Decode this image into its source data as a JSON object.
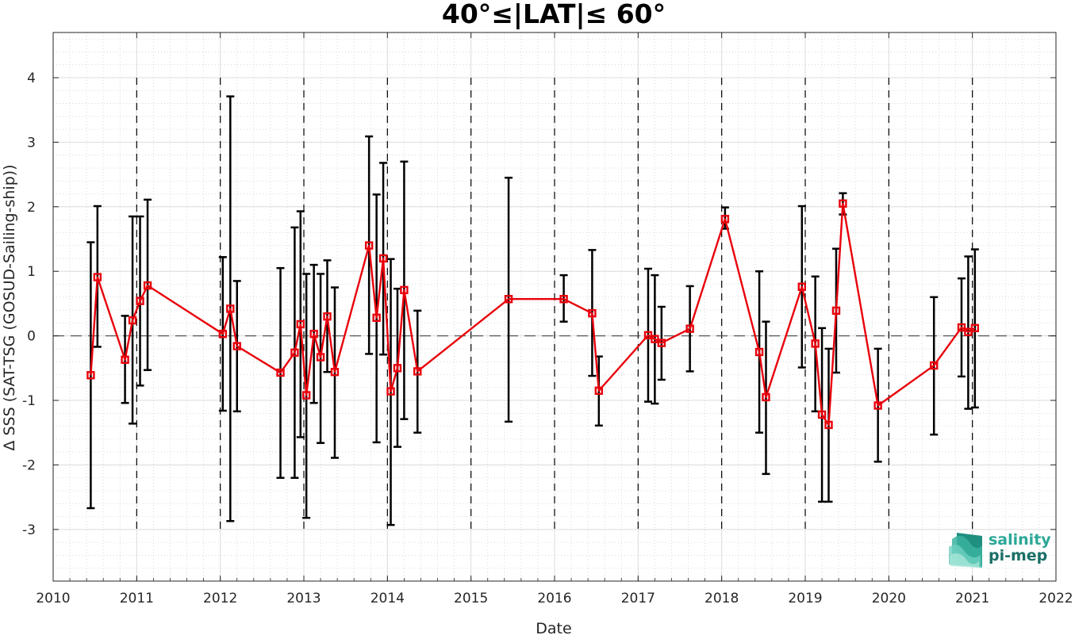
{
  "chart_data": {
    "type": "line",
    "title": "40°≤|LAT|≤ 60°",
    "xlabel": "Date",
    "ylabel": "Δ SSS (SAT-TSG (GOSUD-Sailing-ship))",
    "xlim": [
      2010,
      2022
    ],
    "ylim": [
      -3.8,
      4.7
    ],
    "x_ticks": [
      2010,
      2011,
      2012,
      2013,
      2014,
      2015,
      2016,
      2017,
      2018,
      2019,
      2020,
      2021,
      2022
    ],
    "y_ticks": [
      -3,
      -2,
      -1,
      0,
      1,
      2,
      3,
      4
    ],
    "y_tick_labels": [
      "-3",
      "-2",
      "-1",
      "0",
      "1",
      "2",
      "3",
      "4"
    ],
    "grid": true,
    "minor_grid": true,
    "zero_line": true,
    "year_boundary_lines": true,
    "colors": {
      "series": "#e8000b",
      "errorbar": "#000000"
    },
    "series": [
      {
        "marker": "square",
        "x": [
          2010.45,
          2010.53,
          2010.86,
          2010.95,
          2011.04,
          2011.13,
          2012.03,
          2012.12,
          2012.2,
          2012.72,
          2012.89,
          2012.96,
          2013.03,
          2013.12,
          2013.2,
          2013.28,
          2013.37,
          2013.78,
          2013.87,
          2013.95,
          2014.04,
          2014.12,
          2014.2,
          2014.36,
          2015.45,
          2016.11,
          2016.45,
          2016.53,
          2017.12,
          2017.2,
          2017.28,
          2017.62,
          2018.04,
          2018.45,
          2018.53,
          2018.96,
          2019.12,
          2019.2,
          2019.28,
          2019.37,
          2019.45,
          2019.87,
          2020.54,
          2020.87,
          2020.95,
          2021.03
        ],
        "y": [
          -0.61,
          0.91,
          -0.37,
          0.24,
          0.54,
          0.78,
          0.03,
          0.42,
          -0.16,
          -0.57,
          -0.26,
          0.18,
          -0.92,
          0.03,
          -0.33,
          0.3,
          -0.56,
          1.4,
          0.28,
          1.2,
          -0.86,
          -0.5,
          0.71,
          -0.55,
          0.57,
          0.57,
          0.35,
          -0.85,
          0.01,
          -0.05,
          -0.11,
          0.11,
          1.81,
          -0.25,
          -0.95,
          0.76,
          -0.12,
          -1.22,
          -1.38,
          0.39,
          2.05,
          -1.08,
          -0.46,
          0.13,
          0.06,
          0.12
        ],
        "err_low": [
          -2.67,
          -0.17,
          -1.04,
          -1.36,
          -0.77,
          -0.53,
          -1.16,
          -2.87,
          -1.17,
          -2.2,
          -2.2,
          -1.57,
          -2.82,
          -1.04,
          -1.66,
          -0.56,
          -1.89,
          -0.28,
          -1.65,
          -0.29,
          -2.93,
          -1.72,
          -1.29,
          -1.5,
          -1.33,
          0.22,
          -0.62,
          -1.39,
          -1.02,
          -1.05,
          -0.68,
          -0.55,
          1.66,
          -1.5,
          -2.14,
          -0.49,
          -1.17,
          -2.57,
          -2.57,
          -0.57,
          1.88,
          -1.95,
          -1.53,
          -0.63,
          -1.13,
          -1.11
        ],
        "err_high": [
          1.45,
          2.01,
          0.31,
          1.85,
          1.85,
          2.11,
          1.22,
          3.71,
          0.85,
          1.05,
          1.68,
          1.93,
          0.96,
          1.1,
          0.96,
          1.17,
          0.75,
          3.09,
          2.19,
          2.68,
          1.19,
          0.73,
          2.7,
          0.39,
          2.45,
          0.94,
          1.33,
          -0.32,
          1.04,
          0.94,
          0.45,
          0.77,
          1.99,
          1.0,
          0.22,
          2.01,
          0.92,
          0.12,
          -0.2,
          1.35,
          2.21,
          -0.2,
          0.6,
          0.89,
          1.23,
          1.34
        ]
      }
    ]
  },
  "logo": {
    "line1": "salinity",
    "line2": "pi-mep"
  }
}
